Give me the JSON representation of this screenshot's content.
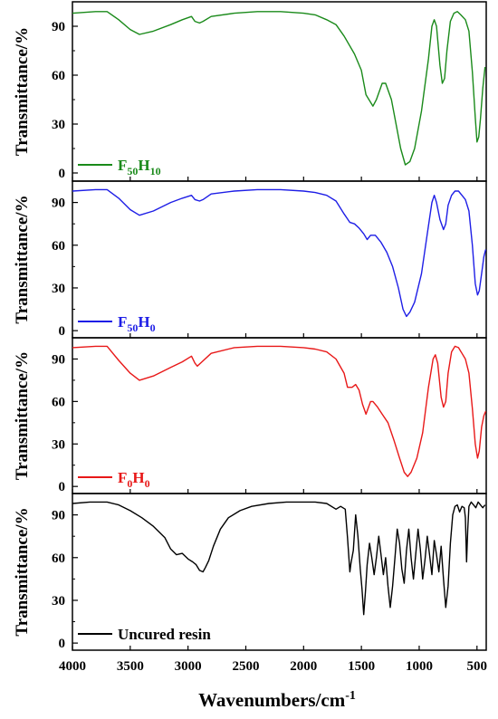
{
  "chart_data": {
    "type": "line",
    "xlabel": "Wavenumbers/cm",
    "xlabel_sup": "-1",
    "xlim": [
      4000,
      420
    ],
    "x_ticks": [
      "4000",
      "3500",
      "3000",
      "2500",
      "2000",
      "1500",
      "1000",
      "500"
    ],
    "x_tick_values": [
      4000,
      3500,
      3000,
      2500,
      2000,
      1500,
      1000,
      500
    ],
    "ylabel": "Transmittance/%",
    "ylim": [
      -5,
      105
    ],
    "y_ticks": [
      "0",
      "30",
      "60",
      "90"
    ],
    "y_tick_values": [
      0,
      30,
      60,
      90
    ],
    "legend_placement": "bottom-left",
    "panels": [
      {
        "legend_label": "F50H10",
        "legend_main": [
          "F",
          "H"
        ],
        "legend_sub": [
          "50",
          "10"
        ],
        "color": "#1a8a1a",
        "points": [
          [
            4000,
            98
          ],
          [
            3800,
            99
          ],
          [
            3700,
            99
          ],
          [
            3600,
            94
          ],
          [
            3500,
            88
          ],
          [
            3420,
            85
          ],
          [
            3300,
            87
          ],
          [
            3150,
            91
          ],
          [
            3050,
            94
          ],
          [
            2970,
            96
          ],
          [
            2940,
            93
          ],
          [
            2900,
            92
          ],
          [
            2870,
            93
          ],
          [
            2800,
            96
          ],
          [
            2600,
            98
          ],
          [
            2400,
            99
          ],
          [
            2200,
            99
          ],
          [
            2000,
            98
          ],
          [
            1900,
            97
          ],
          [
            1800,
            94
          ],
          [
            1720,
            91
          ],
          [
            1650,
            84
          ],
          [
            1560,
            73
          ],
          [
            1500,
            63
          ],
          [
            1460,
            48
          ],
          [
            1400,
            41
          ],
          [
            1370,
            45
          ],
          [
            1320,
            55
          ],
          [
            1290,
            55
          ],
          [
            1240,
            45
          ],
          [
            1200,
            30
          ],
          [
            1160,
            15
          ],
          [
            1120,
            5
          ],
          [
            1080,
            7
          ],
          [
            1040,
            15
          ],
          [
            980,
            38
          ],
          [
            920,
            70
          ],
          [
            890,
            90
          ],
          [
            870,
            94
          ],
          [
            850,
            90
          ],
          [
            820,
            66
          ],
          [
            800,
            55
          ],
          [
            780,
            58
          ],
          [
            760,
            75
          ],
          [
            730,
            93
          ],
          [
            700,
            98
          ],
          [
            670,
            99
          ],
          [
            640,
            97
          ],
          [
            600,
            94
          ],
          [
            570,
            87
          ],
          [
            540,
            62
          ],
          [
            515,
            34
          ],
          [
            500,
            19
          ],
          [
            485,
            22
          ],
          [
            470,
            33
          ],
          [
            450,
            52
          ],
          [
            430,
            65
          ]
        ]
      },
      {
        "legend_label": "F50H0",
        "legend_main": [
          "F",
          "H"
        ],
        "legend_sub": [
          "50",
          "0"
        ],
        "color": "#1e1ee6",
        "points": [
          [
            4000,
            98
          ],
          [
            3800,
            99
          ],
          [
            3700,
            99
          ],
          [
            3600,
            93
          ],
          [
            3500,
            85
          ],
          [
            3420,
            81
          ],
          [
            3300,
            84
          ],
          [
            3150,
            90
          ],
          [
            3050,
            93
          ],
          [
            2970,
            95
          ],
          [
            2940,
            92
          ],
          [
            2900,
            91
          ],
          [
            2870,
            92
          ],
          [
            2800,
            96
          ],
          [
            2600,
            98
          ],
          [
            2400,
            99
          ],
          [
            2200,
            99
          ],
          [
            2000,
            98
          ],
          [
            1900,
            97
          ],
          [
            1800,
            95
          ],
          [
            1720,
            91
          ],
          [
            1650,
            82
          ],
          [
            1600,
            76
          ],
          [
            1560,
            75
          ],
          [
            1520,
            72
          ],
          [
            1480,
            68
          ],
          [
            1450,
            64
          ],
          [
            1420,
            67
          ],
          [
            1380,
            67
          ],
          [
            1330,
            62
          ],
          [
            1280,
            55
          ],
          [
            1230,
            45
          ],
          [
            1180,
            30
          ],
          [
            1140,
            15
          ],
          [
            1110,
            10
          ],
          [
            1080,
            13
          ],
          [
            1040,
            20
          ],
          [
            980,
            40
          ],
          [
            930,
            68
          ],
          [
            890,
            90
          ],
          [
            870,
            95
          ],
          [
            850,
            90
          ],
          [
            820,
            78
          ],
          [
            790,
            71
          ],
          [
            770,
            75
          ],
          [
            750,
            88
          ],
          [
            720,
            95
          ],
          [
            690,
            98
          ],
          [
            660,
            98
          ],
          [
            630,
            95
          ],
          [
            600,
            92
          ],
          [
            570,
            84
          ],
          [
            540,
            60
          ],
          [
            515,
            33
          ],
          [
            495,
            25
          ],
          [
            480,
            28
          ],
          [
            460,
            40
          ],
          [
            440,
            52
          ],
          [
            425,
            57
          ]
        ]
      },
      {
        "legend_label": "F0H0",
        "legend_main": [
          "F",
          "H"
        ],
        "legend_sub": [
          "0",
          "0"
        ],
        "color": "#e81818",
        "points": [
          [
            4000,
            98
          ],
          [
            3800,
            99
          ],
          [
            3700,
            99
          ],
          [
            3600,
            89
          ],
          [
            3500,
            80
          ],
          [
            3420,
            75
          ],
          [
            3300,
            78
          ],
          [
            3150,
            84
          ],
          [
            3050,
            88
          ],
          [
            2970,
            92
          ],
          [
            2940,
            87
          ],
          [
            2920,
            85
          ],
          [
            2880,
            88
          ],
          [
            2800,
            94
          ],
          [
            2600,
            98
          ],
          [
            2400,
            99
          ],
          [
            2200,
            99
          ],
          [
            2000,
            98
          ],
          [
            1900,
            97
          ],
          [
            1800,
            95
          ],
          [
            1720,
            90
          ],
          [
            1650,
            80
          ],
          [
            1620,
            70
          ],
          [
            1580,
            70
          ],
          [
            1550,
            72
          ],
          [
            1520,
            68
          ],
          [
            1490,
            58
          ],
          [
            1460,
            51
          ],
          [
            1420,
            60
          ],
          [
            1400,
            60
          ],
          [
            1360,
            56
          ],
          [
            1320,
            51
          ],
          [
            1270,
            45
          ],
          [
            1220,
            33
          ],
          [
            1170,
            20
          ],
          [
            1130,
            10
          ],
          [
            1100,
            7
          ],
          [
            1070,
            10
          ],
          [
            1020,
            20
          ],
          [
            970,
            38
          ],
          [
            920,
            70
          ],
          [
            880,
            90
          ],
          [
            860,
            93
          ],
          [
            840,
            87
          ],
          [
            810,
            63
          ],
          [
            790,
            56
          ],
          [
            770,
            60
          ],
          [
            750,
            80
          ],
          [
            720,
            95
          ],
          [
            690,
            99
          ],
          [
            660,
            98
          ],
          [
            630,
            94
          ],
          [
            600,
            90
          ],
          [
            570,
            80
          ],
          [
            540,
            55
          ],
          [
            515,
            30
          ],
          [
            495,
            20
          ],
          [
            480,
            25
          ],
          [
            460,
            42
          ],
          [
            440,
            50
          ],
          [
            425,
            53
          ]
        ]
      },
      {
        "legend_label": "Uncured resin",
        "legend_main": [
          "Uncured resin"
        ],
        "legend_sub": [],
        "color": "#000000",
        "points": [
          [
            4000,
            98
          ],
          [
            3850,
            99
          ],
          [
            3700,
            99
          ],
          [
            3600,
            97
          ],
          [
            3500,
            93
          ],
          [
            3400,
            88
          ],
          [
            3300,
            82
          ],
          [
            3200,
            74
          ],
          [
            3150,
            66
          ],
          [
            3100,
            62
          ],
          [
            3050,
            63
          ],
          [
            3000,
            59
          ],
          [
            2960,
            57
          ],
          [
            2930,
            55
          ],
          [
            2900,
            51
          ],
          [
            2870,
            50
          ],
          [
            2850,
            53
          ],
          [
            2820,
            58
          ],
          [
            2780,
            68
          ],
          [
            2720,
            80
          ],
          [
            2650,
            88
          ],
          [
            2550,
            93
          ],
          [
            2450,
            96
          ],
          [
            2300,
            98
          ],
          [
            2150,
            99
          ],
          [
            2000,
            99
          ],
          [
            1900,
            99
          ],
          [
            1800,
            98
          ],
          [
            1720,
            94
          ],
          [
            1680,
            96
          ],
          [
            1640,
            94
          ],
          [
            1620,
            74
          ],
          [
            1600,
            50
          ],
          [
            1590,
            56
          ],
          [
            1570,
            65
          ],
          [
            1550,
            90
          ],
          [
            1530,
            75
          ],
          [
            1510,
            52
          ],
          [
            1495,
            38
          ],
          [
            1480,
            20
          ],
          [
            1465,
            36
          ],
          [
            1450,
            55
          ],
          [
            1430,
            70
          ],
          [
            1410,
            60
          ],
          [
            1390,
            48
          ],
          [
            1370,
            60
          ],
          [
            1350,
            75
          ],
          [
            1330,
            62
          ],
          [
            1310,
            48
          ],
          [
            1290,
            60
          ],
          [
            1270,
            40
          ],
          [
            1250,
            25
          ],
          [
            1230,
            40
          ],
          [
            1210,
            60
          ],
          [
            1190,
            80
          ],
          [
            1170,
            70
          ],
          [
            1150,
            52
          ],
          [
            1130,
            42
          ],
          [
            1110,
            65
          ],
          [
            1090,
            80
          ],
          [
            1070,
            60
          ],
          [
            1050,
            45
          ],
          [
            1030,
            62
          ],
          [
            1010,
            80
          ],
          [
            990,
            66
          ],
          [
            970,
            45
          ],
          [
            950,
            58
          ],
          [
            930,
            75
          ],
          [
            910,
            62
          ],
          [
            890,
            48
          ],
          [
            870,
            72
          ],
          [
            850,
            62
          ],
          [
            830,
            50
          ],
          [
            810,
            68
          ],
          [
            790,
            45
          ],
          [
            770,
            25
          ],
          [
            750,
            40
          ],
          [
            730,
            70
          ],
          [
            710,
            90
          ],
          [
            690,
            96
          ],
          [
            670,
            97
          ],
          [
            650,
            92
          ],
          [
            630,
            96
          ],
          [
            610,
            95
          ],
          [
            600,
            88
          ],
          [
            590,
            57
          ],
          [
            580,
            80
          ],
          [
            570,
            96
          ],
          [
            550,
            99
          ],
          [
            530,
            97
          ],
          [
            510,
            95
          ],
          [
            490,
            99
          ],
          [
            470,
            97
          ],
          [
            450,
            95
          ],
          [
            430,
            97
          ]
        ]
      }
    ]
  }
}
